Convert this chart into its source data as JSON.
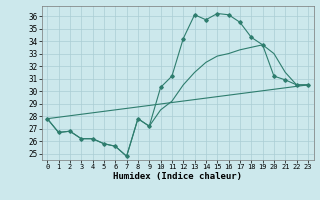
{
  "xlabel": "Humidex (Indice chaleur)",
  "bg_color": "#cce8ec",
  "grid_color": "#aacdd4",
  "line_color": "#2e7d6e",
  "xlim": [
    -0.5,
    23.5
  ],
  "ylim": [
    24.5,
    36.8
  ],
  "xticks": [
    0,
    1,
    2,
    3,
    4,
    5,
    6,
    7,
    8,
    9,
    10,
    11,
    12,
    13,
    14,
    15,
    16,
    17,
    18,
    19,
    20,
    21,
    22,
    23
  ],
  "yticks": [
    25,
    26,
    27,
    28,
    29,
    30,
    31,
    32,
    33,
    34,
    35,
    36
  ],
  "line1_x": [
    0,
    1,
    2,
    3,
    4,
    5,
    6,
    7,
    8,
    9,
    10,
    11,
    12,
    13,
    14,
    15,
    16,
    17,
    18,
    19,
    20,
    21,
    22,
    23
  ],
  "line1_y": [
    27.8,
    26.7,
    26.8,
    26.2,
    26.2,
    25.8,
    25.6,
    24.8,
    27.8,
    27.2,
    30.3,
    31.2,
    34.2,
    36.1,
    35.7,
    36.2,
    36.1,
    35.5,
    34.3,
    33.7,
    31.2,
    30.9,
    30.5,
    30.5
  ],
  "line2_x": [
    0,
    23
  ],
  "line2_y": [
    27.8,
    30.5
  ],
  "line3_x": [
    0,
    1,
    2,
    3,
    4,
    5,
    6,
    7,
    8,
    9,
    10,
    11,
    12,
    13,
    14,
    15,
    16,
    17,
    18,
    19,
    20,
    21,
    22,
    23
  ],
  "line3_y": [
    27.8,
    26.7,
    26.8,
    26.2,
    26.2,
    25.8,
    25.6,
    24.8,
    27.8,
    27.2,
    28.5,
    29.2,
    30.5,
    31.5,
    32.3,
    32.8,
    33.0,
    33.3,
    33.5,
    33.7,
    33.0,
    31.5,
    30.5,
    30.5
  ],
  "figsize": [
    3.2,
    2.0
  ],
  "dpi": 100
}
